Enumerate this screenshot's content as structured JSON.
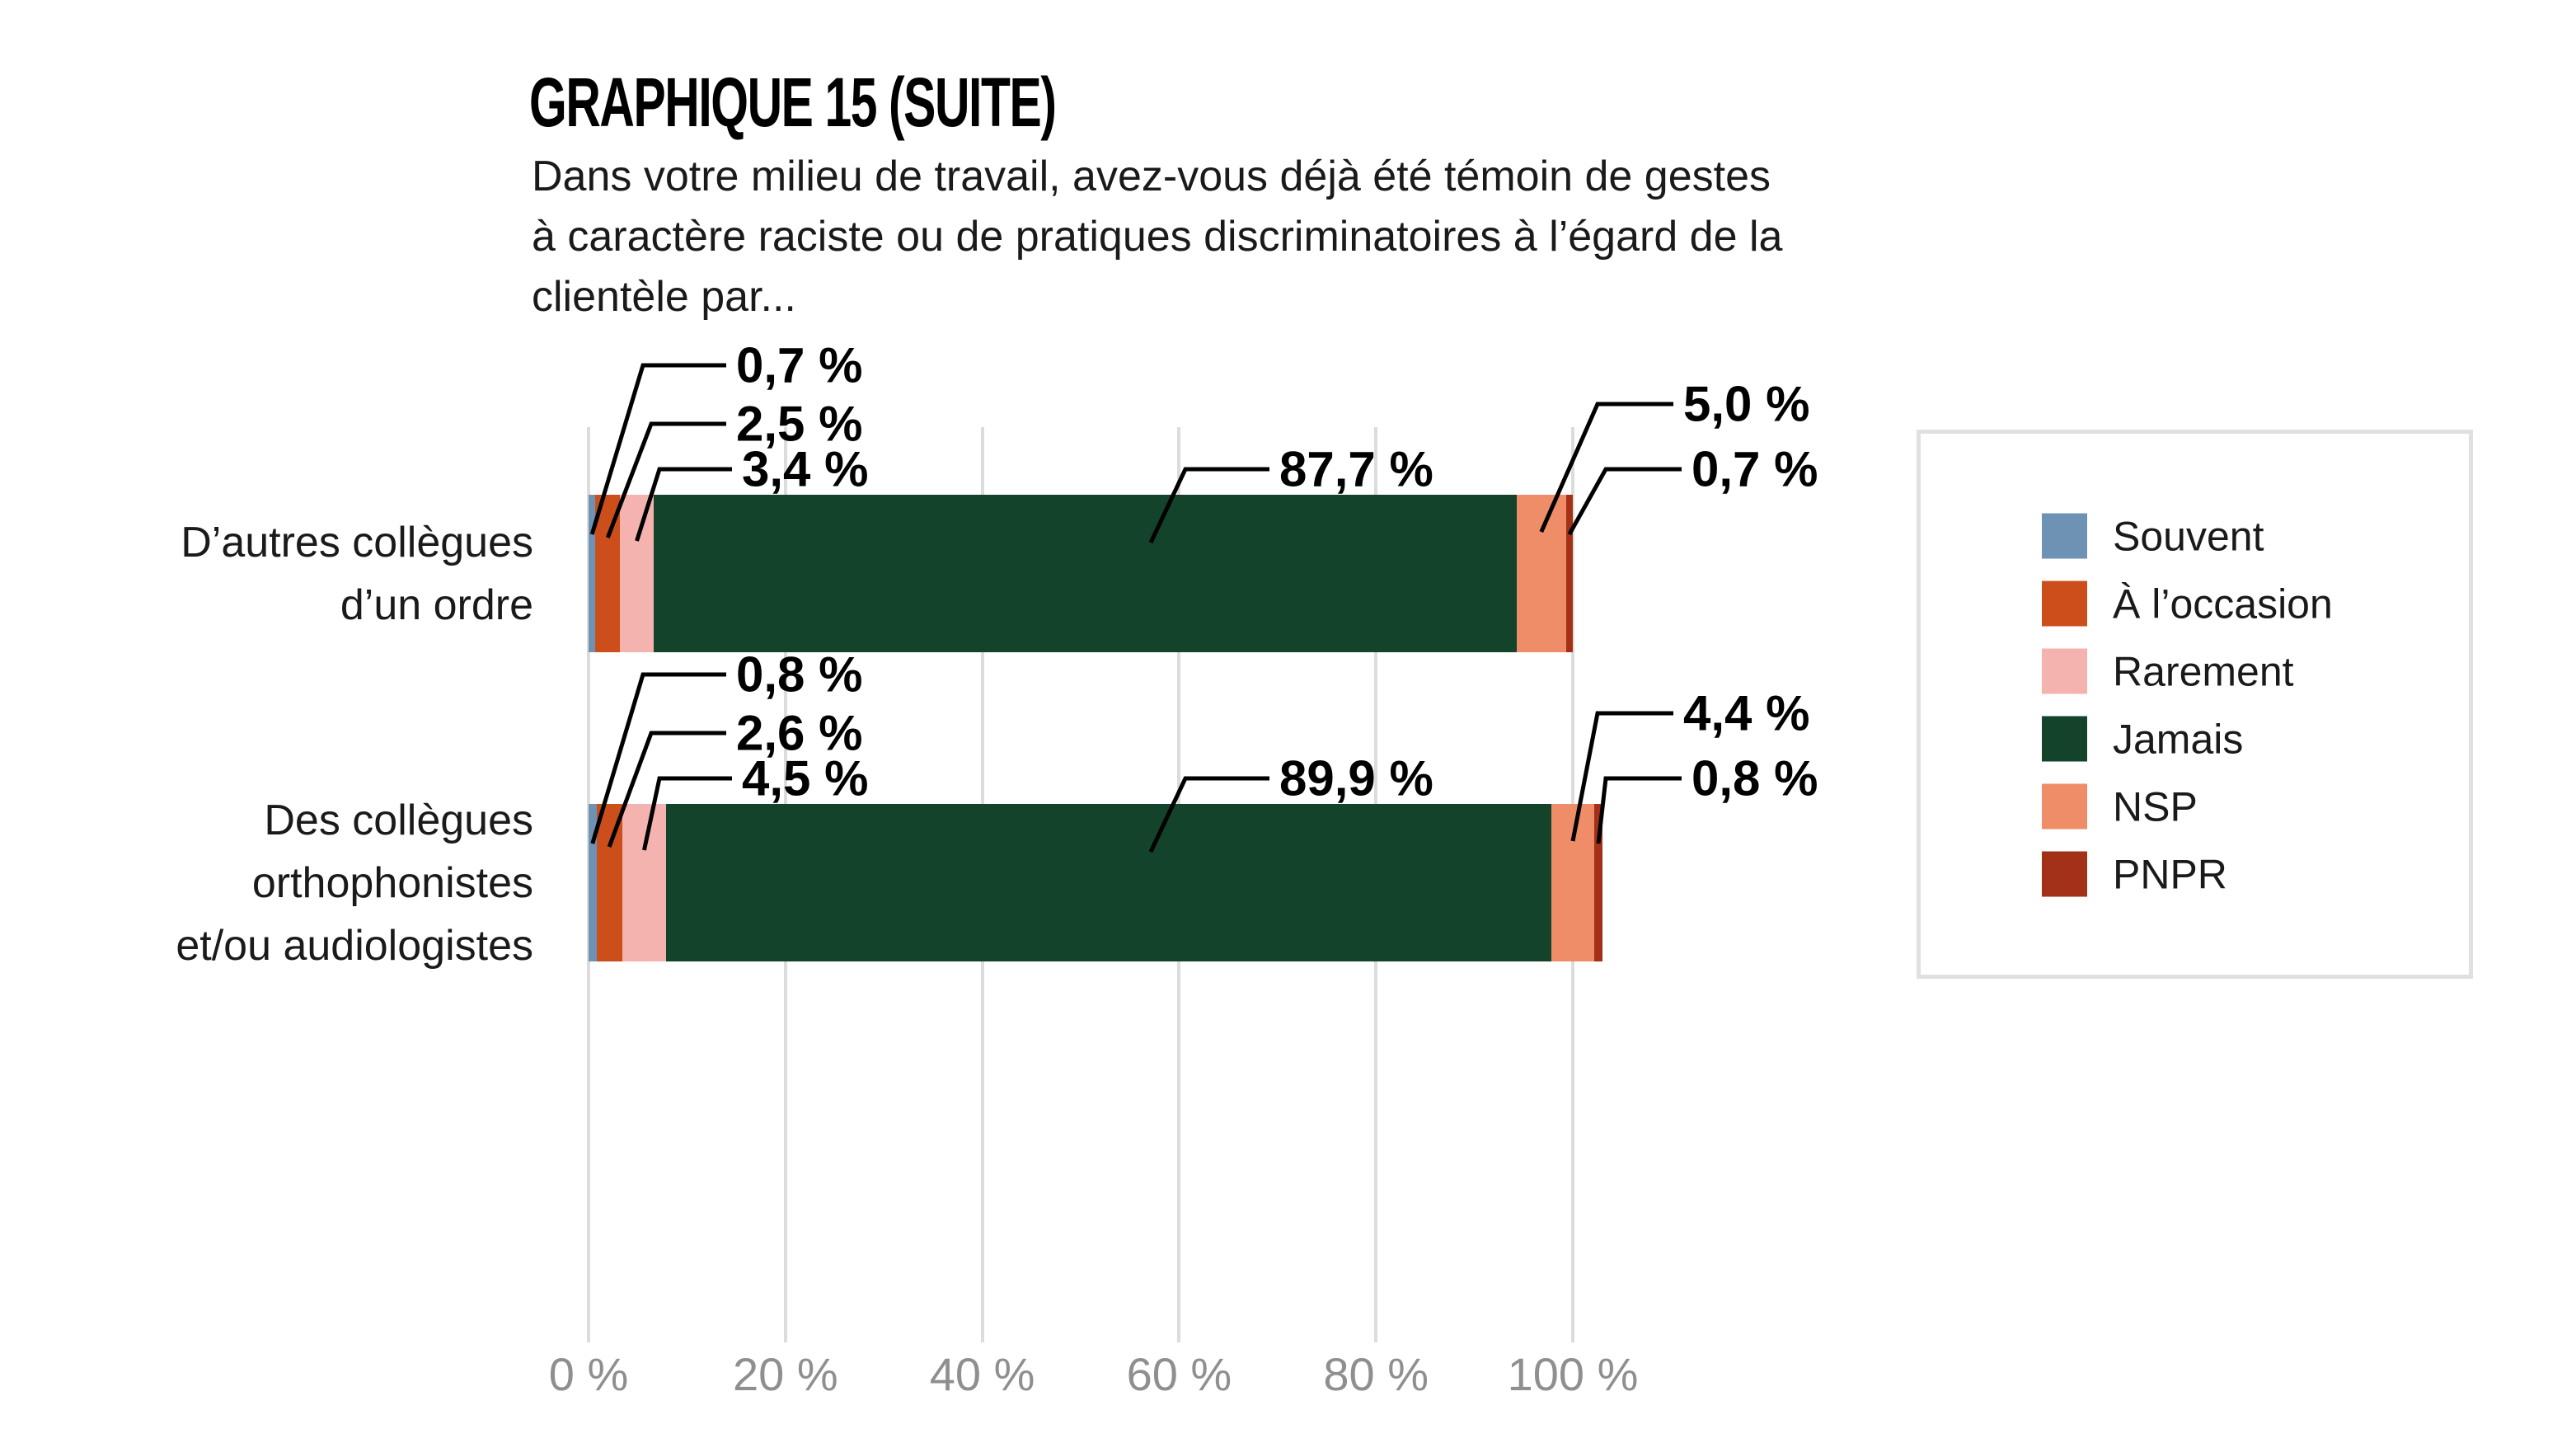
{
  "header": {
    "title": "GRAPHIQUE 15 (SUITE)",
    "subtitle_lines": [
      "Dans votre milieu de travail, avez-vous déjà été témoin de gestes",
      "à caractère raciste ou de pratiques discriminatoires à l’égard de la",
      "clientèle par..."
    ]
  },
  "chart_data": {
    "type": "bar",
    "orientation": "horizontal",
    "stacked": true,
    "grid": true,
    "legend_position": "right",
    "x_axis": {
      "ticks": [
        0,
        20,
        40,
        60,
        80,
        100
      ],
      "tick_labels": [
        "0 %",
        "20 %",
        "40 %",
        "60 %",
        "80 %",
        "100 %"
      ],
      "unit": "%"
    },
    "categories": [
      {
        "name": "D’autres collègues d’un ordre",
        "label_lines": [
          "D’autres collègues",
          "d’un ordre"
        ]
      },
      {
        "name": "Des collègues orthophonistes et/ou audiologistes",
        "label_lines": [
          "Des collègues",
          "orthophonistes",
          "et/ou audiologistes"
        ]
      }
    ],
    "series": [
      {
        "name": "Souvent",
        "color": "#6D92B3",
        "values": [
          0.7,
          0.8
        ],
        "value_labels": [
          "0,7 %",
          "0,8 %"
        ]
      },
      {
        "name": "À l’occasion",
        "color": "#CC4F1B",
        "values": [
          2.5,
          2.6
        ],
        "value_labels": [
          "2,5 %",
          "2,6 %"
        ]
      },
      {
        "name": "Rarement",
        "color": "#F4B3AF",
        "values": [
          3.4,
          4.5
        ],
        "value_labels": [
          "3,4 %",
          "4,5 %"
        ]
      },
      {
        "name": "Jamais",
        "color": "#14432B",
        "values": [
          87.7,
          89.9
        ],
        "value_labels": [
          "87,7 %",
          "89,9 %"
        ]
      },
      {
        "name": "NSP",
        "color": "#EF8D68",
        "values": [
          5.0,
          4.4
        ],
        "value_labels": [
          "5,0 %",
          "4,4 %"
        ]
      },
      {
        "name": "PNPR",
        "color": "#A33118",
        "values": [
          0.7,
          0.8
        ],
        "value_labels": [
          "0,7 %",
          "0,8 %"
        ]
      }
    ]
  },
  "colors": {
    "background": "#FFFFFF",
    "text": "#1A1A1A",
    "tick_text": "#8F8F8F",
    "gridline": "#DCDCDC",
    "legend_border": "#E0E0E0",
    "callout_line": "#000000"
  }
}
